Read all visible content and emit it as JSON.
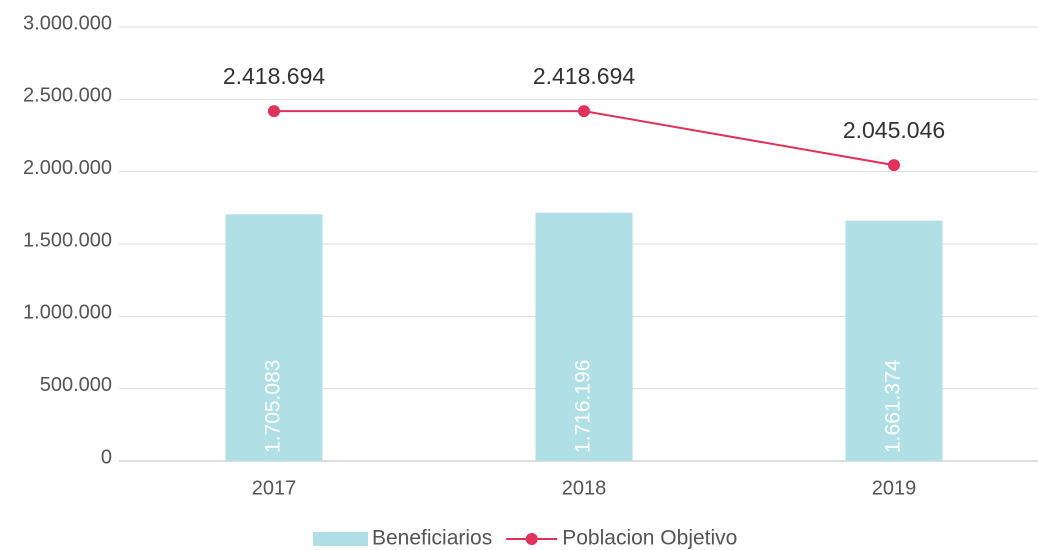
{
  "chart_data": {
    "type": "bar",
    "categories": [
      "2017",
      "2018",
      "2019"
    ],
    "series": [
      {
        "name": "Beneficiarios",
        "type": "bar",
        "color": "#b0dfe5",
        "values": [
          1705083,
          1716196,
          1661374
        ],
        "value_labels": [
          "1.705.083",
          "1.716.196",
          "1.661.374"
        ]
      },
      {
        "name": "Poblacion Objetivo",
        "type": "line",
        "color": "#e0325a",
        "values": [
          2418694,
          2418694,
          2045046
        ],
        "value_labels": [
          "2.418.694",
          "2.418.694",
          "2.045.046"
        ]
      }
    ],
    "ylim": [
      0,
      3000000
    ],
    "yticks": [
      0,
      {
        "value": 500000,
        "label": "500.000"
      },
      {
        "value": 1000000,
        "label": "1.000.000"
      },
      {
        "value": 1500000,
        "label": "1.500.000"
      },
      {
        "value": 2000000,
        "label": "2.000.000"
      },
      {
        "value": 2500000,
        "label": "2.500.000"
      },
      {
        "value": 3000000,
        "label": "3.000.000"
      }
    ],
    "grid": true,
    "legend": "bottom"
  }
}
